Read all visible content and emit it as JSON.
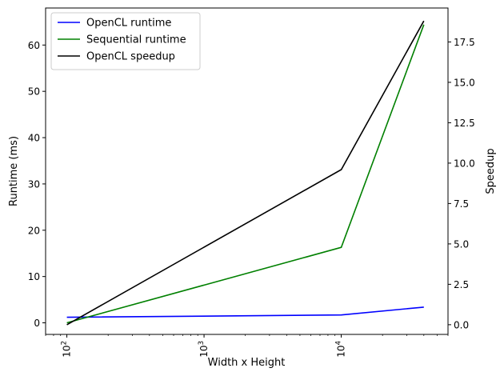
{
  "chart_data": {
    "type": "line",
    "title": "",
    "xlabel": "Width x Height",
    "ylabel_left": "Runtime (ms)",
    "ylabel_right": "Speedup",
    "xscale": "log",
    "xlim": [
      70,
      60000
    ],
    "ylim_left": [
      -2.5,
      68
    ],
    "ylim_right": [
      -0.6,
      19.6
    ],
    "grid": false,
    "legend_position": "top-left",
    "x": [
      100,
      10000,
      40000
    ],
    "x_ticks": [
      {
        "value": 100,
        "base": "10",
        "exp": "2"
      },
      {
        "value": 1000,
        "base": "10",
        "exp": "3"
      },
      {
        "value": 10000,
        "base": "10",
        "exp": "4"
      }
    ],
    "y_ticks_left": [
      "0",
      "10",
      "20",
      "30",
      "40",
      "50",
      "60"
    ],
    "y_ticks_right": [
      "0.0",
      "2.5",
      "5.0",
      "7.5",
      "10.0",
      "12.5",
      "15.0",
      "17.5"
    ],
    "series": [
      {
        "name": "OpenCL runtime",
        "axis": "left",
        "color": "#0000ff",
        "values": [
          1.2,
          1.7,
          3.4
        ]
      },
      {
        "name": "Sequential runtime",
        "axis": "left",
        "color": "#008000",
        "values": [
          0.0,
          16.3,
          64.4
        ]
      },
      {
        "name": "OpenCL speedup",
        "axis": "right",
        "color": "#000000",
        "values": [
          0.0,
          9.6,
          18.8
        ]
      }
    ]
  }
}
